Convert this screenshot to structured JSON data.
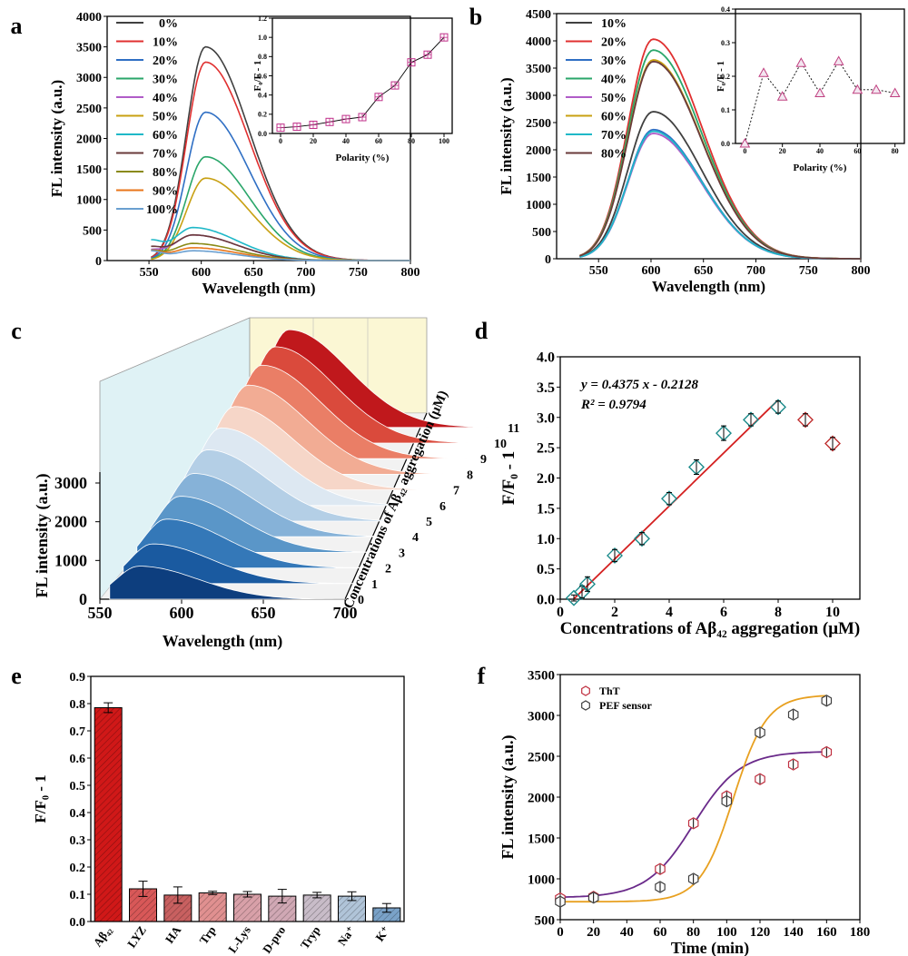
{
  "panel_labels": [
    "a",
    "b",
    "c",
    "d",
    "e",
    "f"
  ],
  "chart_data": [
    {
      "id": "a",
      "type": "line",
      "xlabel": "Wavelength (nm)",
      "ylabel": "FL intensity (a.u.)",
      "xlim": [
        510,
        800
      ],
      "ylim": [
        0,
        4000
      ],
      "xticks": [
        550,
        600,
        650,
        700,
        750,
        800
      ],
      "yticks": [
        0,
        500,
        1000,
        1500,
        2000,
        2500,
        3000,
        3500,
        4000
      ],
      "legend_labels": [
        "0%",
        "10%",
        "20%",
        "30%",
        "40%",
        "50%",
        "60%",
        "70%",
        "80%",
        "90%",
        "100%"
      ],
      "series": [
        {
          "name": "0%",
          "color": "#404040",
          "peak": 3500
        },
        {
          "name": "10%",
          "color": "#e03030",
          "peak": 3250
        },
        {
          "name": "20%",
          "color": "#2f6fc4",
          "peak": 2430
        },
        {
          "name": "30%",
          "color": "#2aa66a",
          "peak": 1700
        },
        {
          "name": "40%",
          "color": "#b05cc8",
          "peak": 420
        },
        {
          "name": "50%",
          "color": "#c8a012",
          "peak": 1350
        },
        {
          "name": "60%",
          "color": "#1fb8c8",
          "peak": 540
        },
        {
          "name": "70%",
          "color": "#6a3a3a",
          "peak": 420
        },
        {
          "name": "80%",
          "color": "#8a8a16",
          "peak": 280
        },
        {
          "name": "90%",
          "color": "#e8751a",
          "peak": 210
        },
        {
          "name": "100%",
          "color": "#6a9fd0",
          "peak": 160
        }
      ],
      "inset": {
        "type": "scatter-line",
        "xlabel": "Polarity (%)",
        "ylabel": "F₀/F - 1",
        "xlim": [
          -5,
          105
        ],
        "ylim": [
          0,
          1.2
        ],
        "xticks": [
          0,
          20,
          40,
          60,
          80,
          100
        ],
        "yticks": [
          0.0,
          0.2,
          0.4,
          0.6,
          0.8,
          1.0,
          1.2
        ],
        "x": [
          0,
          10,
          20,
          30,
          40,
          50,
          60,
          70,
          80,
          90,
          100
        ],
        "y": [
          0.06,
          0.07,
          0.09,
          0.12,
          0.15,
          0.17,
          0.38,
          0.5,
          0.74,
          0.82,
          1.0
        ]
      }
    },
    {
      "id": "b",
      "type": "line",
      "xlabel": "Wavelength (nm)",
      "ylabel": "FL intensity (a.u.)",
      "xlim": [
        510,
        800
      ],
      "ylim": [
        0,
        4500
      ],
      "xticks": [
        550,
        600,
        650,
        700,
        750,
        800
      ],
      "yticks": [
        0,
        500,
        1000,
        1500,
        2000,
        2500,
        3000,
        3500,
        4000,
        4500
      ],
      "legend_labels": [
        "10%",
        "20%",
        "30%",
        "40%",
        "50%",
        "60%",
        "70%",
        "80%"
      ],
      "series": [
        {
          "name": "10%",
          "color": "#404040",
          "peak": 2700
        },
        {
          "name": "20%",
          "color": "#e03030",
          "peak": 4030
        },
        {
          "name": "30%",
          "color": "#2f6fc4",
          "peak": 2370
        },
        {
          "name": "40%",
          "color": "#2aa66a",
          "peak": 3830
        },
        {
          "name": "50%",
          "color": "#b05cc8",
          "peak": 2300
        },
        {
          "name": "60%",
          "color": "#c8a012",
          "peak": 3650
        },
        {
          "name": "70%",
          "color": "#1fb8c8",
          "peak": 2340
        },
        {
          "name": "80%",
          "color": "#6a3a3a",
          "peak": 3620
        }
      ],
      "inset": {
        "type": "scatter-line",
        "xlabel": "Polarity (%)",
        "ylabel": "F₀/F - 1",
        "xlim": [
          -5,
          85
        ],
        "ylim": [
          0,
          0.4
        ],
        "xticks": [
          0,
          20,
          40,
          60,
          80
        ],
        "yticks": [
          0.0,
          0.1,
          0.2,
          0.3,
          0.4
        ],
        "x": [
          0,
          10,
          20,
          30,
          40,
          50,
          60,
          70,
          80
        ],
        "y": [
          0.0,
          0.21,
          0.14,
          0.24,
          0.15,
          0.245,
          0.16,
          0.16,
          0.15
        ]
      }
    },
    {
      "id": "c",
      "type": "area",
      "xlabel": "Wavelength (nm)",
      "ylabel": "FL intensity (a.u.)",
      "zlabel": "Concentrations of Aβ₄₂ aggregation (μM)",
      "xticks": [
        550,
        600,
        650,
        700
      ],
      "yticks": [
        1000,
        2000,
        3000
      ],
      "ytick0": "0",
      "zticks": [
        "0",
        "1",
        "2",
        "3",
        "4",
        "5",
        "6",
        "7",
        "8",
        "9",
        "10",
        "11"
      ],
      "slice_colors": [
        "#0d3e7e",
        "#1a5aa0",
        "#3478b8",
        "#5a96c8",
        "#86b2d8",
        "#b4cfe6",
        "#dde8f2",
        "#f6d6c8",
        "#f2ac94",
        "#ea7e66",
        "#da4a3c",
        "#c0181c"
      ],
      "slice_peaks": [
        1150,
        1380,
        1700,
        1950,
        2200,
        2480,
        2700,
        2900,
        3100,
        3250,
        3350,
        3400
      ]
    },
    {
      "id": "d",
      "type": "scatter",
      "xlabel": "Concentrations of Aβ₄₂ aggregation (μM)",
      "ylabel": "F/F₀ - 1",
      "xlim": [
        0,
        11
      ],
      "ylim": [
        0,
        4.0
      ],
      "xticks": [
        0,
        2,
        4,
        6,
        8,
        10
      ],
      "yticks": [
        0.0,
        0.5,
        1.0,
        1.5,
        2.0,
        2.5,
        3.0,
        3.5,
        4.0
      ],
      "equation": "y = 0.4375 x - 0.2128",
      "r2": "R² = 0.9794",
      "fit": {
        "slope": 0.4375,
        "intercept": -0.2128,
        "x_range": [
          0.5,
          8
        ]
      },
      "x": [
        0.5,
        0.8,
        1,
        2,
        3,
        4,
        5,
        6,
        7,
        8,
        9,
        10
      ],
      "y": [
        0.02,
        0.12,
        0.25,
        0.72,
        1.0,
        1.66,
        2.18,
        2.74,
        2.96,
        3.17,
        2.96,
        2.57
      ],
      "err": [
        0.05,
        0.1,
        0.12,
        0.1,
        0.1,
        0.1,
        0.12,
        0.12,
        0.1,
        0.1,
        0.1,
        0.1
      ],
      "colors": [
        "#1a8a8a",
        "#1a8a8a",
        "#1a8a8a",
        "#1a8a8a",
        "#1a8a8a",
        "#1a8a8a",
        "#1a8a8a",
        "#1a8a8a",
        "#1a8a8a",
        "#1a8a8a",
        "#c03030",
        "#c03030"
      ]
    },
    {
      "id": "e",
      "type": "bar",
      "ylabel": "F/F₀ - 1",
      "ylim": [
        0,
        0.9
      ],
      "yticks": [
        0.0,
        0.1,
        0.2,
        0.3,
        0.4,
        0.5,
        0.6,
        0.7,
        0.8,
        0.9
      ],
      "categories": [
        "Aβ₄₂",
        "LYZ",
        "HA",
        "Trp",
        "L-Lys",
        "D-pro",
        "Tryp",
        "Na⁺",
        "K⁺"
      ],
      "values": [
        0.785,
        0.12,
        0.097,
        0.105,
        0.1,
        0.093,
        0.097,
        0.093,
        0.05
      ],
      "errors": [
        0.018,
        0.028,
        0.03,
        0.006,
        0.01,
        0.025,
        0.01,
        0.016,
        0.016
      ],
      "colors": [
        "#d01818",
        "#d85858",
        "#c86060",
        "#e09090",
        "#d8a0a8",
        "#d0a8b4",
        "#c8bcc8",
        "#b0c4d8",
        "#7aa2c8"
      ]
    },
    {
      "id": "f",
      "type": "scatter",
      "xlabel": "Time (min)",
      "ylabel": "FL intensity (a.u.)",
      "xlim": [
        0,
        180
      ],
      "ylim": [
        500,
        3500
      ],
      "xticks": [
        0,
        20,
        40,
        60,
        80,
        100,
        120,
        140,
        160,
        180
      ],
      "yticks": [
        500,
        1000,
        1500,
        2000,
        2500,
        3000,
        3500
      ],
      "series": [
        {
          "name": "ThT",
          "marker_color": "#c03040",
          "curve_color": "#6a2a8a",
          "x": [
            0,
            20,
            60,
            80,
            100,
            120,
            140,
            160
          ],
          "y": [
            760,
            780,
            1120,
            1680,
            2010,
            2220,
            2400,
            2550
          ],
          "fit": {
            "A1": 770,
            "A2": 2560,
            "x0": 80,
            "dx": 14
          }
        },
        {
          "name": "PEF sensor",
          "marker_color": "#404040",
          "curve_color": "#e8a020",
          "x": [
            0,
            20,
            60,
            80,
            100,
            120,
            140,
            160
          ],
          "y": [
            720,
            770,
            900,
            1000,
            1950,
            2790,
            3010,
            3180
          ],
          "fit": {
            "A1": 720,
            "A2": 3250,
            "x0": 104,
            "dx": 10
          }
        }
      ]
    }
  ]
}
